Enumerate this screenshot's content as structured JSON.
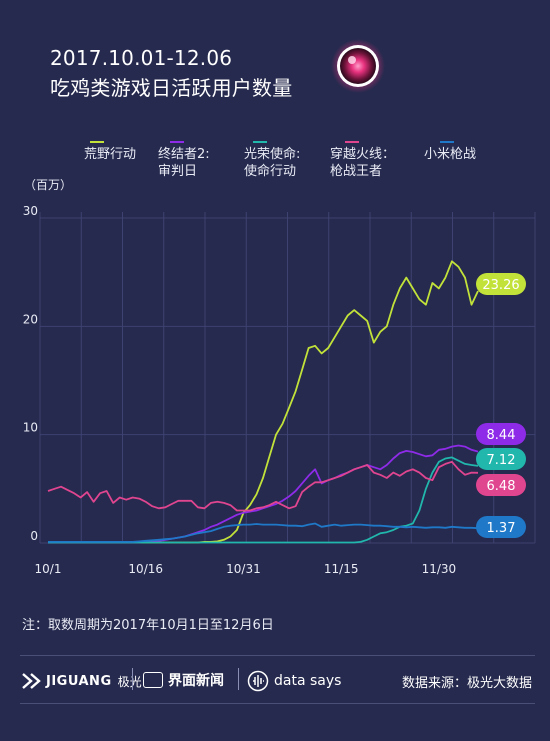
{
  "title": {
    "line1": "2017.10.01-12.06",
    "line2": "吃鸡类游戏日活跃用户数量"
  },
  "note": "注：取数周期为2017年10月1日至12月6日",
  "footer": {
    "brand1_name": "JIGUANG",
    "brand1_cn": "极光",
    "brand2": "界面新闻",
    "brand3": "data says",
    "source": "数据来源：极光大数据"
  },
  "colors": {
    "background": "#262a4e",
    "grid": "#3d4270",
    "s1": "#c2e23a",
    "s2": "#8e2be8",
    "s3": "#21b7ad",
    "s4": "#e04590",
    "s5": "#1f78c8"
  },
  "chart_data": {
    "type": "line",
    "ylabel": "（百万）",
    "ylim": [
      0,
      30
    ],
    "yticks": [
      0,
      10,
      20,
      30
    ],
    "x_tick_labels": [
      "10/1",
      "10/16",
      "10/31",
      "11/15",
      "11/30"
    ],
    "x_tick_days": [
      0,
      15,
      30,
      45,
      60
    ],
    "x": [
      "10/1",
      "10/2",
      "10/3",
      "10/4",
      "10/5",
      "10/6",
      "10/7",
      "10/8",
      "10/9",
      "10/10",
      "10/11",
      "10/12",
      "10/13",
      "10/14",
      "10/15",
      "10/16",
      "10/17",
      "10/18",
      "10/19",
      "10/20",
      "10/21",
      "10/22",
      "10/23",
      "10/24",
      "10/25",
      "10/26",
      "10/27",
      "10/28",
      "10/29",
      "10/30",
      "10/31",
      "11/1",
      "11/2",
      "11/3",
      "11/4",
      "11/5",
      "11/6",
      "11/7",
      "11/8",
      "11/9",
      "11/10",
      "11/11",
      "11/12",
      "11/13",
      "11/14",
      "11/15",
      "11/16",
      "11/17",
      "11/18",
      "11/19",
      "11/20",
      "11/21",
      "11/22",
      "11/23",
      "11/24",
      "11/25",
      "11/26",
      "11/27",
      "11/28",
      "11/29",
      "11/30",
      "12/1",
      "12/2",
      "12/3",
      "12/4",
      "12/5",
      "12/6"
    ],
    "series": [
      {
        "name": "荒野行动",
        "color": "#c2e23a",
        "end_label": "23.26",
        "values": [
          0.05,
          0.05,
          0.05,
          0.05,
          0.05,
          0.05,
          0.05,
          0.05,
          0.05,
          0.05,
          0.05,
          0.05,
          0.05,
          0.05,
          0.05,
          0.05,
          0.05,
          0.05,
          0.05,
          0.05,
          0.05,
          0.05,
          0.05,
          0.05,
          0.1,
          0.1,
          0.15,
          0.3,
          0.6,
          1.2,
          2.8,
          3.5,
          4.5,
          6,
          8,
          10,
          11,
          12.5,
          14,
          16,
          18,
          18.2,
          17.5,
          18,
          19,
          20,
          21,
          21.5,
          21,
          20.5,
          18.5,
          19.5,
          20,
          22,
          23.5,
          24.5,
          23.5,
          22.5,
          22,
          24,
          23.5,
          24.5,
          26,
          25.5,
          24.5,
          22,
          23.26
        ]
      },
      {
        "name": "终结者2:\n审判日",
        "color": "#8e2be8",
        "end_label": "8.44",
        "values": [
          0.05,
          0.05,
          0.05,
          0.05,
          0.05,
          0.05,
          0.05,
          0.05,
          0.05,
          0.05,
          0.05,
          0.05,
          0.05,
          0.05,
          0.05,
          0.1,
          0.15,
          0.2,
          0.3,
          0.4,
          0.5,
          0.6,
          0.8,
          1,
          1.2,
          1.5,
          1.7,
          2,
          2.3,
          2.6,
          2.8,
          2.9,
          3,
          3.2,
          3.4,
          3.6,
          3.9,
          4.3,
          4.8,
          5.5,
          6.2,
          6.8,
          5.5,
          5.8,
          6,
          6.3,
          6.5,
          6.8,
          7,
          7.2,
          7,
          6.8,
          7.2,
          7.8,
          8.3,
          8.5,
          8.4,
          8.2,
          8,
          8.1,
          8.6,
          8.7,
          8.9,
          9,
          8.9,
          8.6,
          8.44
        ]
      },
      {
        "name": "光荣使命:\n使命行动",
        "color": "#21b7ad",
        "end_label": "7.12",
        "values": [
          0.05,
          0.05,
          0.05,
          0.05,
          0.05,
          0.05,
          0.05,
          0.05,
          0.05,
          0.05,
          0.05,
          0.05,
          0.05,
          0.05,
          0.05,
          0.05,
          0.05,
          0.05,
          0.05,
          0.05,
          0.05,
          0.05,
          0.05,
          0.05,
          0.05,
          0.05,
          0.05,
          0.05,
          0.05,
          0.05,
          0.05,
          0.05,
          0.05,
          0.05,
          0.05,
          0.05,
          0.05,
          0.05,
          0.05,
          0.05,
          0.05,
          0.05,
          0.05,
          0.05,
          0.05,
          0.05,
          0.05,
          0.05,
          0.1,
          0.3,
          0.6,
          0.9,
          1,
          1.2,
          1.5,
          1.6,
          1.8,
          3,
          5,
          6.5,
          7.5,
          7.8,
          7.9,
          7.6,
          7.3,
          7.2,
          7.12
        ]
      },
      {
        "name": "穿越火线：\n枪战王者",
        "color": "#e04590",
        "end_label": "6.48",
        "values": [
          4.8,
          5,
          5.2,
          4.9,
          4.6,
          4.2,
          4.7,
          3.8,
          4.6,
          4.8,
          3.7,
          4.2,
          4,
          4.2,
          4.1,
          3.8,
          3.4,
          3.2,
          3.3,
          3.6,
          3.9,
          3.9,
          3.9,
          3.3,
          3.2,
          3.7,
          3.8,
          3.7,
          3.5,
          3,
          3,
          3,
          3.2,
          3.3,
          3.5,
          3.8,
          3.5,
          3.2,
          3.4,
          4.7,
          5.2,
          5.6,
          5.6,
          5.8,
          6,
          6.2,
          6.5,
          6.8,
          7,
          7.2,
          6.5,
          6.3,
          6,
          6.5,
          6.2,
          6.6,
          6.8,
          6.5,
          6,
          5.8,
          7,
          7.3,
          7.5,
          6.8,
          6.3,
          6.5,
          6.48
        ]
      },
      {
        "name": "小米枪战",
        "color": "#1f78c8",
        "end_label": "1.37",
        "values": [
          0.1,
          0.1,
          0.1,
          0.1,
          0.1,
          0.1,
          0.1,
          0.1,
          0.1,
          0.1,
          0.1,
          0.1,
          0.1,
          0.1,
          0.15,
          0.2,
          0.25,
          0.3,
          0.35,
          0.4,
          0.5,
          0.6,
          0.75,
          0.9,
          1,
          1.1,
          1.3,
          1.5,
          1.6,
          1.65,
          1.7,
          1.7,
          1.75,
          1.7,
          1.7,
          1.7,
          1.65,
          1.6,
          1.6,
          1.55,
          1.7,
          1.8,
          1.5,
          1.6,
          1.7,
          1.6,
          1.65,
          1.7,
          1.7,
          1.65,
          1.6,
          1.6,
          1.55,
          1.5,
          1.5,
          1.45,
          1.5,
          1.45,
          1.4,
          1.45,
          1.45,
          1.4,
          1.5,
          1.45,
          1.4,
          1.4,
          1.37
        ]
      }
    ]
  }
}
